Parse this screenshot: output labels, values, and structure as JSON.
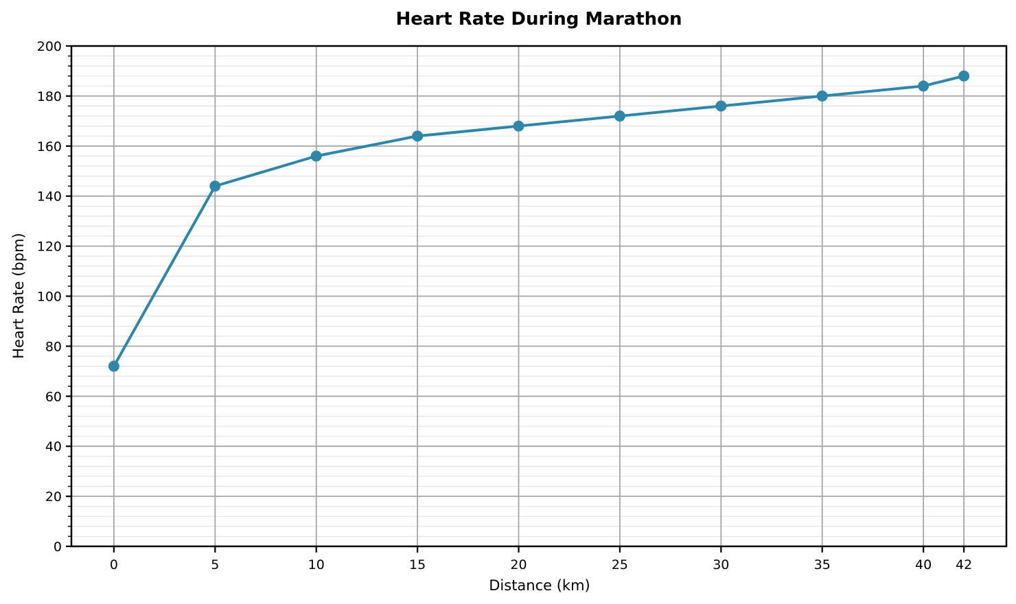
{
  "chart_data": {
    "type": "line",
    "title": "Heart Rate During Marathon",
    "xlabel": "Distance (km)",
    "ylabel": "Heart Rate (bpm)",
    "series": [
      {
        "name": "Heart Rate",
        "x": [
          0,
          5,
          10,
          15,
          20,
          25,
          30,
          35,
          40,
          42
        ],
        "y": [
          72,
          144,
          156,
          164,
          168,
          172,
          176,
          180,
          184,
          188
        ]
      }
    ],
    "xlim": [
      -2.1,
      44.1
    ],
    "ylim": [
      0,
      200
    ],
    "x_ticks": [
      0,
      5,
      10,
      15,
      20,
      25,
      30,
      35,
      40,
      42
    ],
    "y_ticks": [
      0,
      20,
      40,
      60,
      80,
      100,
      120,
      140,
      160,
      180,
      200
    ],
    "y_minor_tick_step": 4,
    "legend": "none",
    "grid": {
      "vertical_major": true,
      "horizontal_major": true,
      "horizontal_minor": true,
      "major_color": "#a6a6a6",
      "minor_color": "#e1e1e1"
    },
    "colors": {
      "line": "#2e86ab",
      "marker": "#2e86ab",
      "spine": "#000000",
      "background": "#ffffff",
      "text": "#000000"
    }
  }
}
